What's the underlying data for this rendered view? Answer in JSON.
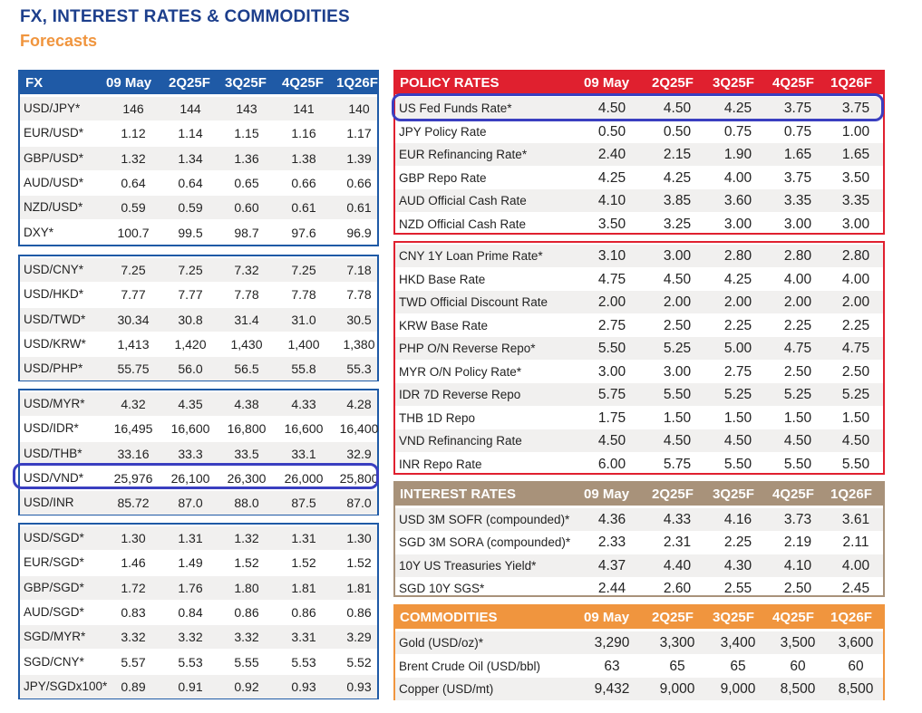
{
  "title": "FX, INTEREST RATES & COMMODITIES",
  "subtitle": "Forecasts",
  "columns": [
    "09 May",
    "2Q25F",
    "3Q25F",
    "4Q25F",
    "1Q26F"
  ],
  "fx": {
    "header": "FX",
    "group1": [
      {
        "label": "USD/JPY*",
        "vals": [
          "146",
          "144",
          "143",
          "141",
          "140"
        ]
      },
      {
        "label": "EUR/USD*",
        "vals": [
          "1.12",
          "1.14",
          "1.15",
          "1.16",
          "1.17"
        ]
      },
      {
        "label": "GBP/USD*",
        "vals": [
          "1.32",
          "1.34",
          "1.36",
          "1.38",
          "1.39"
        ]
      },
      {
        "label": "AUD/USD*",
        "vals": [
          "0.64",
          "0.64",
          "0.65",
          "0.66",
          "0.66"
        ]
      },
      {
        "label": "NZD/USD*",
        "vals": [
          "0.59",
          "0.59",
          "0.60",
          "0.61",
          "0.61"
        ]
      },
      {
        "label": "DXY*",
        "vals": [
          "100.7",
          "99.5",
          "98.7",
          "97.6",
          "96.9"
        ]
      }
    ],
    "group2": [
      {
        "label": "USD/CNY*",
        "vals": [
          "7.25",
          "7.25",
          "7.32",
          "7.25",
          "7.18"
        ]
      },
      {
        "label": "USD/HKD*",
        "vals": [
          "7.77",
          "7.77",
          "7.78",
          "7.78",
          "7.78"
        ]
      },
      {
        "label": "USD/TWD*",
        "vals": [
          "30.34",
          "30.8",
          "31.4",
          "31.0",
          "30.5"
        ]
      },
      {
        "label": "USD/KRW*",
        "vals": [
          "1,413",
          "1,420",
          "1,430",
          "1,400",
          "1,380"
        ]
      },
      {
        "label": "USD/PHP*",
        "vals": [
          "55.75",
          "56.0",
          "56.5",
          "55.8",
          "55.3"
        ]
      }
    ],
    "group3": [
      {
        "label": "USD/MYR*",
        "vals": [
          "4.32",
          "4.35",
          "4.38",
          "4.33",
          "4.28"
        ]
      },
      {
        "label": "USD/IDR*",
        "vals": [
          "16,495",
          "16,600",
          "16,800",
          "16,600",
          "16,400"
        ]
      },
      {
        "label": "USD/THB*",
        "vals": [
          "33.16",
          "33.3",
          "33.5",
          "33.1",
          "32.9"
        ]
      },
      {
        "label": "USD/VND*",
        "vals": [
          "25,976",
          "26,100",
          "26,300",
          "26,000",
          "25,800"
        ]
      },
      {
        "label": "USD/INR",
        "vals": [
          "85.72",
          "87.0",
          "88.0",
          "87.5",
          "87.0"
        ]
      }
    ],
    "group4": [
      {
        "label": "USD/SGD*",
        "vals": [
          "1.30",
          "1.31",
          "1.32",
          "1.31",
          "1.30"
        ]
      },
      {
        "label": "EUR/SGD*",
        "vals": [
          "1.46",
          "1.49",
          "1.52",
          "1.52",
          "1.52"
        ]
      },
      {
        "label": "GBP/SGD*",
        "vals": [
          "1.72",
          "1.76",
          "1.80",
          "1.81",
          "1.81"
        ]
      },
      {
        "label": "AUD/SGD*",
        "vals": [
          "0.83",
          "0.84",
          "0.86",
          "0.86",
          "0.86"
        ]
      },
      {
        "label": "SGD/MYR*",
        "vals": [
          "3.32",
          "3.32",
          "3.32",
          "3.31",
          "3.29"
        ]
      },
      {
        "label": "SGD/CNY*",
        "vals": [
          "5.57",
          "5.53",
          "5.55",
          "5.53",
          "5.52"
        ]
      },
      {
        "label": "JPY/SGDx100*",
        "vals": [
          "0.89",
          "0.91",
          "0.92",
          "0.93",
          "0.93"
        ]
      }
    ]
  },
  "policy": {
    "header": "POLICY RATES",
    "group1": [
      {
        "label": "US Fed Funds Rate*",
        "vals": [
          "4.50",
          "4.50",
          "4.25",
          "3.75",
          "3.75"
        ]
      },
      {
        "label": "JPY Policy Rate",
        "vals": [
          "0.50",
          "0.50",
          "0.75",
          "0.75",
          "1.00"
        ]
      },
      {
        "label": "EUR Refinancing Rate*",
        "vals": [
          "2.40",
          "2.15",
          "1.90",
          "1.65",
          "1.65"
        ]
      },
      {
        "label": "GBP Repo Rate",
        "vals": [
          "4.25",
          "4.25",
          "4.00",
          "3.75",
          "3.50"
        ]
      },
      {
        "label": "AUD Official Cash Rate",
        "vals": [
          "4.10",
          "3.85",
          "3.60",
          "3.35",
          "3.35"
        ]
      },
      {
        "label": "NZD Official Cash Rate",
        "vals": [
          "3.50",
          "3.25",
          "3.00",
          "3.00",
          "3.00"
        ]
      }
    ],
    "group2": [
      {
        "label": "CNY 1Y Loan Prime Rate*",
        "vals": [
          "3.10",
          "3.00",
          "2.80",
          "2.80",
          "2.80"
        ]
      },
      {
        "label": "HKD Base Rate",
        "vals": [
          "4.75",
          "4.50",
          "4.25",
          "4.00",
          "4.00"
        ]
      },
      {
        "label": "TWD Official Discount Rate",
        "vals": [
          "2.00",
          "2.00",
          "2.00",
          "2.00",
          "2.00"
        ]
      },
      {
        "label": "KRW Base Rate",
        "vals": [
          "2.75",
          "2.50",
          "2.25",
          "2.25",
          "2.25"
        ]
      },
      {
        "label": "PHP O/N Reverse Repo*",
        "vals": [
          "5.50",
          "5.25",
          "5.00",
          "4.75",
          "4.75"
        ]
      },
      {
        "label": "MYR O/N Policy Rate*",
        "vals": [
          "3.00",
          "3.00",
          "2.75",
          "2.50",
          "2.50"
        ]
      },
      {
        "label": "IDR 7D Reverse Repo",
        "vals": [
          "5.75",
          "5.50",
          "5.25",
          "5.25",
          "5.25"
        ]
      },
      {
        "label": "THB 1D Repo",
        "vals": [
          "1.75",
          "1.50",
          "1.50",
          "1.50",
          "1.50"
        ]
      },
      {
        "label": "VND Refinancing Rate",
        "vals": [
          "4.50",
          "4.50",
          "4.50",
          "4.50",
          "4.50"
        ]
      },
      {
        "label": "INR Repo Rate",
        "vals": [
          "6.00",
          "5.75",
          "5.50",
          "5.50",
          "5.50"
        ]
      }
    ]
  },
  "interest": {
    "header": "INTEREST RATES",
    "rows": [
      {
        "label": "USD 3M SOFR (compounded)*",
        "vals": [
          "4.36",
          "4.33",
          "4.16",
          "3.73",
          "3.61"
        ]
      },
      {
        "label": "SGD 3M SORA (compounded)*",
        "vals": [
          "2.33",
          "2.31",
          "2.25",
          "2.19",
          "2.11"
        ]
      },
      {
        "label": "10Y US Treasuries Yield*",
        "vals": [
          "4.37",
          "4.40",
          "4.30",
          "4.10",
          "4.00"
        ]
      },
      {
        "label": "SGD 10Y SGS*",
        "vals": [
          "2.44",
          "2.60",
          "2.55",
          "2.50",
          "2.45"
        ]
      }
    ]
  },
  "commodities": {
    "header": "COMMODITIES",
    "rows": [
      {
        "label": "Gold (USD/oz)*",
        "vals": [
          "3,290",
          "3,300",
          "3,400",
          "3,500",
          "3,600"
        ]
      },
      {
        "label": "Brent Crude Oil (USD/bbl)",
        "vals": [
          "63",
          "65",
          "65",
          "60",
          "60"
        ]
      },
      {
        "label": "Copper (USD/mt)",
        "vals": [
          "9,432",
          "9,000",
          "9,000",
          "8,500",
          "8,500"
        ]
      }
    ]
  }
}
